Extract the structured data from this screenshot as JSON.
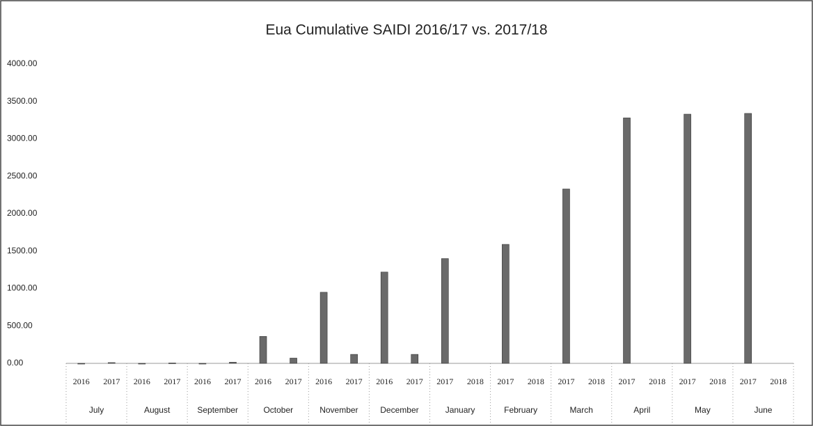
{
  "chart_data": {
    "type": "bar",
    "title": "Eua Cumulative SAIDI 2016/17 vs. 2017/18",
    "groups": [
      "July",
      "August",
      "September",
      "October",
      "November",
      "December",
      "January",
      "February",
      "March",
      "April",
      "May",
      "June"
    ],
    "categories": [
      "2016",
      "2017",
      "2016",
      "2017",
      "2016",
      "2017",
      "2016",
      "2017",
      "2016",
      "2017",
      "2016",
      "2017",
      "2017",
      "2018",
      "2017",
      "2018",
      "2017",
      "2018",
      "2017",
      "2018",
      "2017",
      "2018",
      "2017",
      "2018"
    ],
    "values": [
      0,
      10,
      0,
      5,
      0,
      15,
      360,
      70,
      950,
      120,
      1220,
      120,
      1400,
      null,
      1590,
      null,
      2330,
      null,
      3280,
      null,
      3330,
      null,
      3340,
      null
    ],
    "color": "#6a6a6a",
    "ylim": [
      0,
      4000
    ],
    "yticks": [
      {
        "value": 0,
        "label": "0.00"
      },
      {
        "value": 500,
        "label": "500.00"
      },
      {
        "value": 1000,
        "label": "1000.00"
      },
      {
        "value": 1500,
        "label": "1500.00"
      },
      {
        "value": 2000,
        "label": "2000.00"
      },
      {
        "value": 2500,
        "label": "2500.00"
      },
      {
        "value": 3000,
        "label": "3000.00"
      },
      {
        "value": 3500,
        "label": "3500.00"
      },
      {
        "value": 4000,
        "label": "4000.00"
      }
    ],
    "grid": false
  }
}
